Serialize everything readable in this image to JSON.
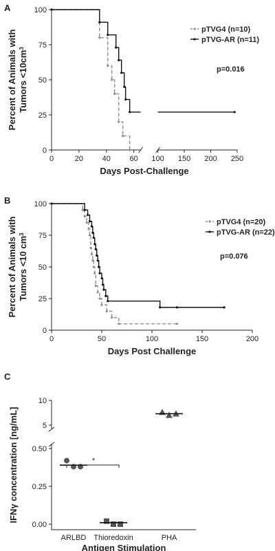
{
  "chart_data": [
    {
      "type": "line",
      "panel_label": "A",
      "ylabel": [
        "Percent of Animals with",
        "Tumors <10cm"
      ],
      "ylabel_superscript": "3",
      "xlabel": "Days Post-Challenge",
      "xlim": [
        0,
        250
      ],
      "xbreak": [
        65,
        100
      ],
      "xticks": [
        0,
        20,
        40,
        60,
        100,
        150,
        200,
        250
      ],
      "ylim": [
        0,
        100
      ],
      "yticks": [
        0,
        25,
        50,
        75,
        100
      ],
      "annotation": "p=0.016",
      "series": [
        {
          "name": "pTVG4 (n=10)",
          "color": "#8c8c8c",
          "dash": true,
          "x": [
            0,
            35,
            41,
            44,
            46,
            49,
            52,
            57
          ],
          "values": [
            100,
            80,
            60,
            50,
            40,
            20,
            10,
            0
          ]
        },
        {
          "name": "pTVG-AR (n=11)",
          "color": "#111111",
          "dash": false,
          "x": [
            0,
            35,
            41,
            47,
            49,
            51,
            53,
            54,
            57,
            245
          ],
          "values": [
            100,
            91,
            82,
            73,
            64,
            55,
            45,
            36,
            27,
            27
          ]
        }
      ]
    },
    {
      "type": "line",
      "panel_label": "B",
      "ylabel": [
        "Percent of Animals with",
        "Tumors <10 cm"
      ],
      "ylabel_superscript": "3",
      "xlabel": "Days Post Challenge",
      "xlim": [
        0,
        200
      ],
      "xticks": [
        0,
        50,
        100,
        150,
        200
      ],
      "ylim": [
        0,
        100
      ],
      "yticks": [
        0,
        25,
        50,
        75,
        100
      ],
      "annotation": "p=0.076",
      "series": [
        {
          "name": "pTVG4 (n=20)",
          "color": "#8c8c8c",
          "dash": true,
          "x": [
            0,
            31,
            33,
            35,
            37,
            38,
            39,
            40,
            41,
            42,
            43,
            44,
            46,
            48,
            50,
            55,
            60,
            67,
            125
          ],
          "values": [
            100,
            95,
            90,
            85,
            80,
            75,
            65,
            60,
            55,
            50,
            45,
            35,
            30,
            25,
            20,
            15,
            10,
            5,
            5
          ]
        },
        {
          "name": "pTVG-AR (n=22)",
          "color": "#111111",
          "dash": false,
          "x": [
            0,
            33,
            36,
            38,
            40,
            41,
            42,
            43,
            44,
            45,
            46,
            47,
            48,
            50,
            51,
            52,
            54,
            56,
            108,
            125,
            172
          ],
          "values": [
            100,
            95,
            91,
            86,
            82,
            77,
            73,
            68,
            64,
            59,
            55,
            50,
            45,
            41,
            36,
            32,
            27,
            23,
            18,
            18,
            18
          ]
        }
      ]
    },
    {
      "type": "scatter",
      "panel_label": "C",
      "ylabel": "IFNγ concentration [ng/mL]",
      "xlabel": "Antigen Stimulation",
      "categories": [
        "ARLBD",
        "Thioredoxin",
        "PHA"
      ],
      "ylim": [
        0,
        10
      ],
      "ybreak": [
        0.5,
        5
      ],
      "yticks": [
        {
          "value": 0,
          "label": "0.00"
        },
        {
          "value": 0.25,
          "label": "0.25"
        },
        {
          "value": 0.5,
          "label": "0.50"
        },
        5,
        10
      ],
      "color": "#555555",
      "markers": [
        "circle",
        "square",
        "triangle"
      ],
      "points": [
        [
          0.42,
          0.38,
          0.38
        ],
        [
          0.02,
          0.0,
          0.0
        ],
        [
          7.6,
          7.0,
          7.3
        ]
      ],
      "means": [
        0.39,
        0.01,
        7.3
      ],
      "significance": {
        "between": [
          0,
          1
        ],
        "label": "*"
      }
    }
  ]
}
